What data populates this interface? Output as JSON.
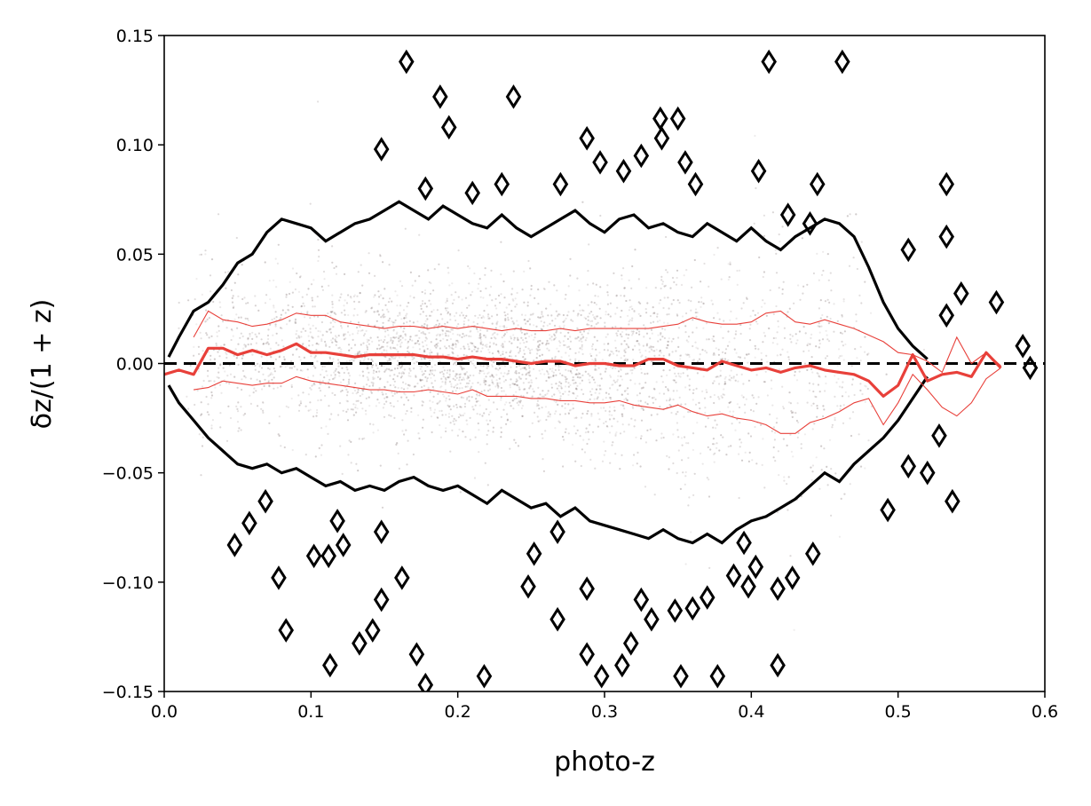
{
  "chart_data": {
    "type": "scatter",
    "title": "",
    "xlabel": "photo-z",
    "ylabel": "δz/(1 + z)",
    "xlim": [
      0.0,
      0.6
    ],
    "ylim": [
      -0.15,
      0.15
    ],
    "xticks": [
      "0.0",
      "0.1",
      "0.2",
      "0.3",
      "0.4",
      "0.5",
      "0.6"
    ],
    "xtick_values": [
      0.0,
      0.1,
      0.2,
      0.3,
      0.4,
      0.5,
      0.6
    ],
    "yticks": [
      "−0.15",
      "−0.10",
      "−0.05",
      "0.00",
      "0.05",
      "0.10",
      "0.15"
    ],
    "ytick_values": [
      -0.15,
      -0.1,
      -0.05,
      0.0,
      0.05,
      0.1,
      0.15
    ],
    "grid": false,
    "legend": "none",
    "colors": {
      "median": "#e8403a",
      "envelope": "#e8403a",
      "contour": "#000000",
      "scatter": "#6b5a5a",
      "reference": "#000000"
    },
    "reference_line": {
      "y": 0.0,
      "style": "dashed"
    },
    "median": {
      "x": [
        0.0,
        0.01,
        0.02,
        0.03,
        0.04,
        0.05,
        0.06,
        0.07,
        0.08,
        0.09,
        0.1,
        0.11,
        0.12,
        0.13,
        0.14,
        0.15,
        0.16,
        0.17,
        0.18,
        0.19,
        0.2,
        0.21,
        0.22,
        0.23,
        0.24,
        0.25,
        0.26,
        0.27,
        0.28,
        0.29,
        0.3,
        0.31,
        0.32,
        0.33,
        0.34,
        0.35,
        0.36,
        0.37,
        0.38,
        0.39,
        0.4,
        0.41,
        0.42,
        0.43,
        0.44,
        0.45,
        0.46,
        0.47,
        0.48,
        0.49,
        0.5,
        0.51,
        0.52,
        0.53,
        0.54,
        0.55,
        0.56,
        0.57
      ],
      "y": [
        -0.005,
        -0.003,
        -0.005,
        0.007,
        0.007,
        0.004,
        0.006,
        0.004,
        0.006,
        0.009,
        0.005,
        0.005,
        0.004,
        0.003,
        0.004,
        0.004,
        0.004,
        0.004,
        0.003,
        0.003,
        0.002,
        0.003,
        0.002,
        0.002,
        0.001,
        0.0,
        0.001,
        0.001,
        -0.001,
        0.0,
        0.0,
        -0.001,
        -0.001,
        0.002,
        0.002,
        -0.001,
        -0.002,
        -0.003,
        0.001,
        -0.001,
        -0.003,
        -0.002,
        -0.004,
        -0.002,
        -0.001,
        -0.003,
        -0.004,
        -0.005,
        -0.008,
        -0.015,
        -0.01,
        0.004,
        -0.008,
        -0.005,
        -0.004,
        -0.006,
        0.005,
        -0.002
      ]
    },
    "upper_envelope": {
      "x": [
        0.02,
        0.03,
        0.04,
        0.05,
        0.06,
        0.07,
        0.08,
        0.09,
        0.1,
        0.11,
        0.12,
        0.13,
        0.14,
        0.15,
        0.16,
        0.17,
        0.18,
        0.19,
        0.2,
        0.21,
        0.22,
        0.23,
        0.24,
        0.25,
        0.26,
        0.27,
        0.28,
        0.29,
        0.3,
        0.31,
        0.32,
        0.33,
        0.34,
        0.35,
        0.36,
        0.37,
        0.38,
        0.39,
        0.4,
        0.41,
        0.42,
        0.43,
        0.44,
        0.45,
        0.46,
        0.47,
        0.48,
        0.49,
        0.5,
        0.51,
        0.52,
        0.53,
        0.54,
        0.55,
        0.56,
        0.57
      ],
      "y": [
        0.012,
        0.024,
        0.02,
        0.019,
        0.017,
        0.018,
        0.02,
        0.023,
        0.022,
        0.022,
        0.019,
        0.018,
        0.017,
        0.016,
        0.017,
        0.017,
        0.016,
        0.017,
        0.016,
        0.017,
        0.016,
        0.015,
        0.016,
        0.015,
        0.015,
        0.016,
        0.015,
        0.016,
        0.016,
        0.016,
        0.016,
        0.016,
        0.017,
        0.018,
        0.021,
        0.019,
        0.018,
        0.018,
        0.019,
        0.023,
        0.024,
        0.019,
        0.018,
        0.02,
        0.018,
        0.016,
        0.013,
        0.01,
        0.005,
        0.004,
        0.001,
        -0.004,
        0.012,
        0.0,
        0.005,
        -0.001
      ]
    },
    "lower_envelope": {
      "x": [
        0.02,
        0.03,
        0.04,
        0.05,
        0.06,
        0.07,
        0.08,
        0.09,
        0.1,
        0.11,
        0.12,
        0.13,
        0.14,
        0.15,
        0.16,
        0.17,
        0.18,
        0.19,
        0.2,
        0.21,
        0.22,
        0.23,
        0.24,
        0.25,
        0.26,
        0.27,
        0.28,
        0.29,
        0.3,
        0.31,
        0.32,
        0.33,
        0.34,
        0.35,
        0.36,
        0.37,
        0.38,
        0.39,
        0.4,
        0.41,
        0.42,
        0.43,
        0.44,
        0.45,
        0.46,
        0.47,
        0.48,
        0.49,
        0.5,
        0.51,
        0.52,
        0.53,
        0.54,
        0.55,
        0.56,
        0.57
      ],
      "y": [
        -0.012,
        -0.011,
        -0.008,
        -0.009,
        -0.01,
        -0.009,
        -0.009,
        -0.006,
        -0.008,
        -0.009,
        -0.01,
        -0.011,
        -0.012,
        -0.012,
        -0.013,
        -0.013,
        -0.012,
        -0.013,
        -0.014,
        -0.012,
        -0.015,
        -0.015,
        -0.015,
        -0.016,
        -0.016,
        -0.017,
        -0.017,
        -0.018,
        -0.018,
        -0.017,
        -0.019,
        -0.02,
        -0.021,
        -0.019,
        -0.022,
        -0.024,
        -0.023,
        -0.025,
        -0.026,
        -0.028,
        -0.032,
        -0.032,
        -0.027,
        -0.025,
        -0.022,
        -0.018,
        -0.016,
        -0.028,
        -0.018,
        -0.005,
        -0.012,
        -0.02,
        -0.024,
        -0.018,
        -0.007,
        -0.002
      ]
    },
    "outer_contour_upper": {
      "x": [
        0.003,
        0.01,
        0.02,
        0.03,
        0.04,
        0.05,
        0.06,
        0.07,
        0.08,
        0.09,
        0.1,
        0.11,
        0.12,
        0.13,
        0.14,
        0.15,
        0.16,
        0.17,
        0.18,
        0.19,
        0.2,
        0.21,
        0.22,
        0.23,
        0.24,
        0.25,
        0.26,
        0.27,
        0.28,
        0.29,
        0.3,
        0.31,
        0.32,
        0.33,
        0.34,
        0.35,
        0.36,
        0.37,
        0.38,
        0.39,
        0.4,
        0.41,
        0.42,
        0.43,
        0.44,
        0.45,
        0.46,
        0.47,
        0.48,
        0.49,
        0.5,
        0.51,
        0.52
      ],
      "y": [
        0.003,
        0.012,
        0.024,
        0.028,
        0.036,
        0.046,
        0.05,
        0.06,
        0.066,
        0.064,
        0.062,
        0.056,
        0.06,
        0.064,
        0.066,
        0.07,
        0.074,
        0.07,
        0.066,
        0.072,
        0.068,
        0.064,
        0.062,
        0.068,
        0.062,
        0.058,
        0.062,
        0.066,
        0.07,
        0.064,
        0.06,
        0.066,
        0.068,
        0.062,
        0.064,
        0.06,
        0.058,
        0.064,
        0.06,
        0.056,
        0.062,
        0.056,
        0.052,
        0.058,
        0.062,
        0.066,
        0.064,
        0.058,
        0.044,
        0.028,
        0.016,
        0.008,
        0.002
      ]
    },
    "outer_contour_lower": {
      "x": [
        0.003,
        0.01,
        0.02,
        0.03,
        0.04,
        0.05,
        0.06,
        0.07,
        0.08,
        0.09,
        0.1,
        0.11,
        0.12,
        0.13,
        0.14,
        0.15,
        0.16,
        0.17,
        0.18,
        0.19,
        0.2,
        0.21,
        0.22,
        0.23,
        0.24,
        0.25,
        0.26,
        0.27,
        0.28,
        0.29,
        0.3,
        0.31,
        0.32,
        0.33,
        0.34,
        0.35,
        0.36,
        0.37,
        0.38,
        0.39,
        0.4,
        0.41,
        0.42,
        0.43,
        0.44,
        0.45,
        0.46,
        0.47,
        0.48,
        0.49,
        0.5,
        0.51,
        0.52
      ],
      "y": [
        -0.01,
        -0.018,
        -0.026,
        -0.034,
        -0.04,
        -0.046,
        -0.048,
        -0.046,
        -0.05,
        -0.048,
        -0.052,
        -0.056,
        -0.054,
        -0.058,
        -0.056,
        -0.058,
        -0.054,
        -0.052,
        -0.056,
        -0.058,
        -0.056,
        -0.06,
        -0.064,
        -0.058,
        -0.062,
        -0.066,
        -0.064,
        -0.07,
        -0.066,
        -0.072,
        -0.074,
        -0.076,
        -0.078,
        -0.08,
        -0.076,
        -0.08,
        -0.082,
        -0.078,
        -0.082,
        -0.076,
        -0.072,
        -0.07,
        -0.066,
        -0.062,
        -0.056,
        -0.05,
        -0.054,
        -0.046,
        -0.04,
        -0.034,
        -0.026,
        -0.016,
        -0.006
      ]
    },
    "isolated_contours": [
      {
        "x": 0.165,
        "y": 0.138
      },
      {
        "x": 0.188,
        "y": 0.122
      },
      {
        "x": 0.194,
        "y": 0.108
      },
      {
        "x": 0.238,
        "y": 0.122
      },
      {
        "x": 0.288,
        "y": 0.103
      },
      {
        "x": 0.297,
        "y": 0.092
      },
      {
        "x": 0.325,
        "y": 0.095
      },
      {
        "x": 0.338,
        "y": 0.112
      },
      {
        "x": 0.35,
        "y": 0.112
      },
      {
        "x": 0.339,
        "y": 0.103
      },
      {
        "x": 0.412,
        "y": 0.138
      },
      {
        "x": 0.462,
        "y": 0.138
      },
      {
        "x": 0.148,
        "y": 0.098
      },
      {
        "x": 0.405,
        "y": 0.088
      },
      {
        "x": 0.355,
        "y": 0.092
      },
      {
        "x": 0.362,
        "y": 0.082
      },
      {
        "x": 0.313,
        "y": 0.088
      },
      {
        "x": 0.445,
        "y": 0.082
      },
      {
        "x": 0.425,
        "y": 0.068
      },
      {
        "x": 0.44,
        "y": 0.064
      },
      {
        "x": 0.23,
        "y": 0.082
      },
      {
        "x": 0.178,
        "y": 0.08
      },
      {
        "x": 0.21,
        "y": 0.078
      },
      {
        "x": 0.27,
        "y": 0.082
      },
      {
        "x": 0.533,
        "y": 0.082
      },
      {
        "x": 0.533,
        "y": 0.058
      },
      {
        "x": 0.507,
        "y": 0.052
      },
      {
        "x": 0.543,
        "y": 0.032
      },
      {
        "x": 0.567,
        "y": 0.028
      },
      {
        "x": 0.533,
        "y": 0.022
      },
      {
        "x": 0.585,
        "y": 0.008
      },
      {
        "x": 0.59,
        "y": -0.002
      },
      {
        "x": 0.048,
        "y": -0.083
      },
      {
        "x": 0.058,
        "y": -0.073
      },
      {
        "x": 0.069,
        "y": -0.063
      },
      {
        "x": 0.078,
        "y": -0.098
      },
      {
        "x": 0.083,
        "y": -0.122
      },
      {
        "x": 0.102,
        "y": -0.088
      },
      {
        "x": 0.112,
        "y": -0.088
      },
      {
        "x": 0.113,
        "y": -0.138
      },
      {
        "x": 0.118,
        "y": -0.072
      },
      {
        "x": 0.122,
        "y": -0.083
      },
      {
        "x": 0.133,
        "y": -0.128
      },
      {
        "x": 0.142,
        "y": -0.122
      },
      {
        "x": 0.148,
        "y": -0.077
      },
      {
        "x": 0.148,
        "y": -0.108
      },
      {
        "x": 0.162,
        "y": -0.098
      },
      {
        "x": 0.172,
        "y": -0.133
      },
      {
        "x": 0.178,
        "y": -0.147
      },
      {
        "x": 0.218,
        "y": -0.143
      },
      {
        "x": 0.252,
        "y": -0.087
      },
      {
        "x": 0.248,
        "y": -0.102
      },
      {
        "x": 0.268,
        "y": -0.077
      },
      {
        "x": 0.268,
        "y": -0.117
      },
      {
        "x": 0.288,
        "y": -0.133
      },
      {
        "x": 0.288,
        "y": -0.103
      },
      {
        "x": 0.298,
        "y": -0.143
      },
      {
        "x": 0.312,
        "y": -0.138
      },
      {
        "x": 0.318,
        "y": -0.128
      },
      {
        "x": 0.332,
        "y": -0.117
      },
      {
        "x": 0.348,
        "y": -0.113
      },
      {
        "x": 0.352,
        "y": -0.143
      },
      {
        "x": 0.36,
        "y": -0.112
      },
      {
        "x": 0.37,
        "y": -0.107
      },
      {
        "x": 0.377,
        "y": -0.143
      },
      {
        "x": 0.388,
        "y": -0.097
      },
      {
        "x": 0.398,
        "y": -0.102
      },
      {
        "x": 0.403,
        "y": -0.093
      },
      {
        "x": 0.418,
        "y": -0.138
      },
      {
        "x": 0.418,
        "y": -0.103
      },
      {
        "x": 0.428,
        "y": -0.098
      },
      {
        "x": 0.442,
        "y": -0.087
      },
      {
        "x": 0.325,
        "y": -0.108
      },
      {
        "x": 0.395,
        "y": -0.082
      },
      {
        "x": 0.537,
        "y": -0.063
      },
      {
        "x": 0.493,
        "y": -0.067
      },
      {
        "x": 0.52,
        "y": -0.05
      },
      {
        "x": 0.507,
        "y": -0.047
      },
      {
        "x": 0.528,
        "y": -0.033
      }
    ]
  }
}
